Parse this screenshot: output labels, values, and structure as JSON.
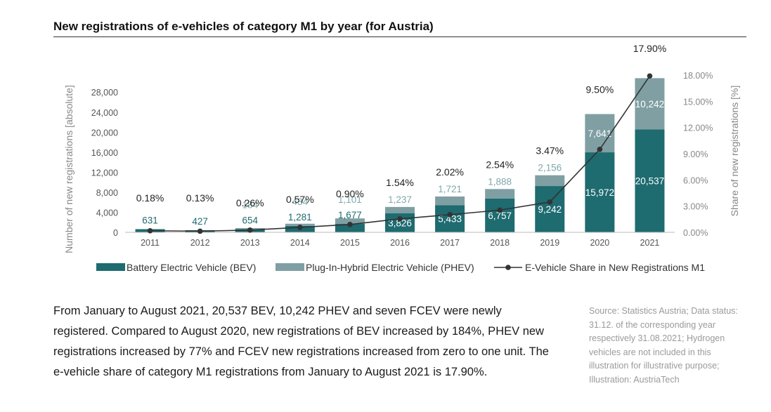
{
  "title": "New registrations of e-vehicles of category M1 by year (for Austria)",
  "body_text": "From January to August 2021, 20,537 BEV, 10,242 PHEV and seven FCEV were newly registered. Compared to August 2020, new registrations of BEV increased by 184%, PHEV new registrations increased by 77% and FCEV new registrations increased from zero to one unit. The e-vehicle share of category M1 registrations from January to August 2021 is 17.90%.",
  "source_note": "Source: Statistics Austria; Data status: 31.12. of the corresponding year respectively 31.08.2021; Hydrogen vehicles are not included in this illustration for illustrative purpose; Illustration: AustriaTech",
  "chart_data": {
    "type": "bar",
    "stacked": true,
    "categories": [
      "2011",
      "2012",
      "2013",
      "2014",
      "2015",
      "2016",
      "2017",
      "2018",
      "2019",
      "2020",
      "2021"
    ],
    "series": [
      {
        "name": "Battery Electric Vehicle (BEV)",
        "type": "bar",
        "color": "#1e6b70",
        "values": [
          631,
          427,
          654,
          1281,
          1677,
          3826,
          5433,
          6757,
          9242,
          15972,
          20537
        ],
        "labels": [
          "631",
          "427",
          "654",
          "1,281",
          "1,677",
          "3,826",
          "5,433",
          "6,757",
          "9,242",
          "15,972",
          "20,537"
        ]
      },
      {
        "name": "Plug-In-Hybrid Electric Vehicle (PHEV)",
        "type": "bar",
        "color": "#7f9fa3",
        "values": [
          0,
          0,
          184,
          434,
          1101,
          1237,
          1721,
          1888,
          2156,
          7641,
          10242
        ],
        "labels": [
          "",
          "",
          "184",
          "434",
          "1,101",
          "1,237",
          "1,721",
          "1,888",
          "2,156",
          "7,641",
          "10,242"
        ]
      },
      {
        "name": "E-Vehicle Share in New Registrations M1",
        "type": "line",
        "axis": "right",
        "color": "#333333",
        "values": [
          0.18,
          0.13,
          0.26,
          0.57,
          0.9,
          1.54,
          2.02,
          2.54,
          3.47,
          9.5,
          17.9
        ],
        "labels": [
          "0.18%",
          "0.13%",
          "0.26%",
          "0.57%",
          "0.90%",
          "1.54%",
          "2.02%",
          "2.54%",
          "3.47%",
          "9.50%",
          "17.90%"
        ]
      }
    ],
    "ylabel": "Number of new registrations [absolute]",
    "y2label": "Share of new registrations [%]",
    "yticks": [
      0,
      4000,
      8000,
      12000,
      16000,
      20000,
      24000,
      28000
    ],
    "ytick_labels": [
      "0",
      "4,000",
      "8,000",
      "12,000",
      "16,000",
      "20,000",
      "24,000",
      "28,000"
    ],
    "y2ticks": [
      0,
      3,
      6,
      9,
      12,
      15,
      18
    ],
    "y2tick_labels": [
      "0.00%",
      "3.00%",
      "6.00%",
      "9.00%",
      "12.00%",
      "15.00%",
      "18.00%"
    ],
    "ylim": [
      0,
      31000
    ],
    "y2lim": [
      0,
      19.8
    ],
    "legend_position": "bottom",
    "grid": false
  }
}
